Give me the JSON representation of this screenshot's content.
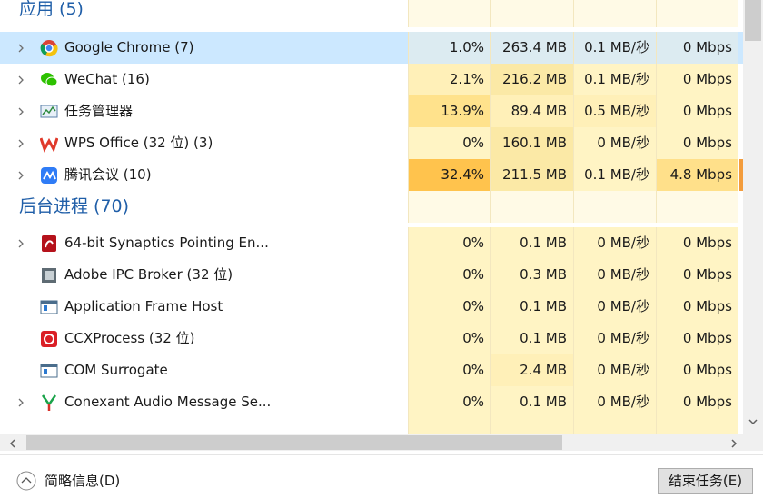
{
  "groups": [
    {
      "title": "应用 (5)",
      "rows": [
        {
          "name": "Google Chrome (7)",
          "expandable": true,
          "selected": true,
          "cells": [
            "1.0%",
            "263.4 MB",
            "0.1 MB/秒",
            "0 Mbps"
          ],
          "colors": [
            "#dcebf1",
            "#dcebf1",
            "#dcebf1",
            "#dcebf1"
          ]
        },
        {
          "name": "WeChat (16)",
          "expandable": true,
          "selected": false,
          "cells": [
            "2.1%",
            "216.2 MB",
            "0.1 MB/秒",
            "0 Mbps"
          ],
          "colors": [
            "#fff0b8",
            "#fbe9a6",
            "#fff4c4",
            "#fff4c4"
          ]
        },
        {
          "name": "任务管理器",
          "expandable": true,
          "selected": false,
          "cells": [
            "13.9%",
            "89.4 MB",
            "0.5 MB/秒",
            "0 Mbps"
          ],
          "colors": [
            "#ffe28c",
            "#fff0b8",
            "#fff0b8",
            "#fff4c4"
          ]
        },
        {
          "name": "WPS Office (32 位) (3)",
          "expandable": true,
          "selected": false,
          "cells": [
            "0%",
            "160.1 MB",
            "0 MB/秒",
            "0 Mbps"
          ],
          "colors": [
            "#fff4c4",
            "#fbe9a6",
            "#fff4c4",
            "#fff4c4"
          ]
        },
        {
          "name": "腾讯会议 (10)",
          "expandable": true,
          "selected": false,
          "cells": [
            "32.4%",
            "211.5 MB",
            "0.1 MB/秒",
            "4.8 Mbps"
          ],
          "colors": [
            "#ffc34d",
            "#fbe9a6",
            "#fff4c4",
            "#ffe08a"
          ]
        }
      ]
    },
    {
      "title": "后台进程 (70)",
      "rows": [
        {
          "name": "64-bit Synaptics Pointing En...",
          "expandable": true,
          "selected": false,
          "cells": [
            "0%",
            "0.1 MB",
            "0 MB/秒",
            "0 Mbps"
          ],
          "colors": [
            "#fff4c4",
            "#fff4c4",
            "#fff4c4",
            "#fff4c4"
          ]
        },
        {
          "name": "Adobe IPC Broker (32 位)",
          "expandable": false,
          "selected": false,
          "cells": [
            "0%",
            "0.3 MB",
            "0 MB/秒",
            "0 Mbps"
          ],
          "colors": [
            "#fff4c4",
            "#fff4c4",
            "#fff4c4",
            "#fff4c4"
          ]
        },
        {
          "name": "Application Frame Host",
          "expandable": false,
          "selected": false,
          "cells": [
            "0%",
            "0.1 MB",
            "0 MB/秒",
            "0 Mbps"
          ],
          "colors": [
            "#fff4c4",
            "#fff4c4",
            "#fff4c4",
            "#fff4c4"
          ]
        },
        {
          "name": "CCXProcess (32 位)",
          "expandable": false,
          "selected": false,
          "cells": [
            "0%",
            "0.1 MB",
            "0 MB/秒",
            "0 Mbps"
          ],
          "colors": [
            "#fff4c4",
            "#fff4c4",
            "#fff4c4",
            "#fff4c4"
          ]
        },
        {
          "name": "COM Surrogate",
          "expandable": false,
          "selected": false,
          "cells": [
            "0%",
            "2.4 MB",
            "0 MB/秒",
            "0 Mbps"
          ],
          "colors": [
            "#fff4c4",
            "#fff0b8",
            "#fff4c4",
            "#fff4c4"
          ]
        },
        {
          "name": "Conexant Audio Message Se...",
          "expandable": true,
          "selected": false,
          "cells": [
            "0%",
            "0.1 MB",
            "0 MB/秒",
            "0 Mbps"
          ],
          "colors": [
            "#fff4c4",
            "#fff4c4",
            "#fff4c4",
            "#fff4c4"
          ]
        }
      ]
    }
  ],
  "footer": {
    "collapse": "简略信息(D)",
    "end_task": "结束任务(E)"
  }
}
